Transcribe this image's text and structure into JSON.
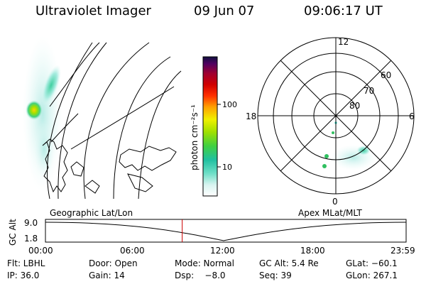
{
  "header": {
    "title": "Ultraviolet Imager",
    "date": "09 Jun 07",
    "time": "09:06:17 UT"
  },
  "colorbar": {
    "label": "photon cm⁻²s⁻¹",
    "ticks": [
      {
        "value": 100,
        "label": "100"
      },
      {
        "value": 10,
        "label": "10"
      }
    ]
  },
  "polar_plot": {
    "mlt_labels": {
      "top": "12",
      "left": "18",
      "right": "6",
      "bottom": "0"
    },
    "lat_labels": [
      "60",
      "70",
      "80"
    ]
  },
  "timeline": {
    "left_caption": "Geographic Lat/Lon",
    "right_caption": "Apex MLat/MLT",
    "axis_label": "GC Alt",
    "y_ticks": [
      "9.0",
      "1.8"
    ],
    "x_ticks": [
      "00:00",
      "06:00",
      "12:00",
      "18:00",
      "23:59"
    ],
    "current_time_hours": 9.1
  },
  "info": {
    "filter": "Flt: LBHL",
    "door": "Door: Open",
    "mode": "Mode: Normal",
    "gc_alt": "GC Alt: 5.4 Re",
    "glat": "GLat: −60.1",
    "ip": "IP: 36.0",
    "gain": "Gain: 14",
    "dsp": "Dsp:    −8.0",
    "seq": "Seq: 39",
    "glon": "GLon: 267.1"
  },
  "colors": {
    "accent_line": "#cc0000"
  }
}
